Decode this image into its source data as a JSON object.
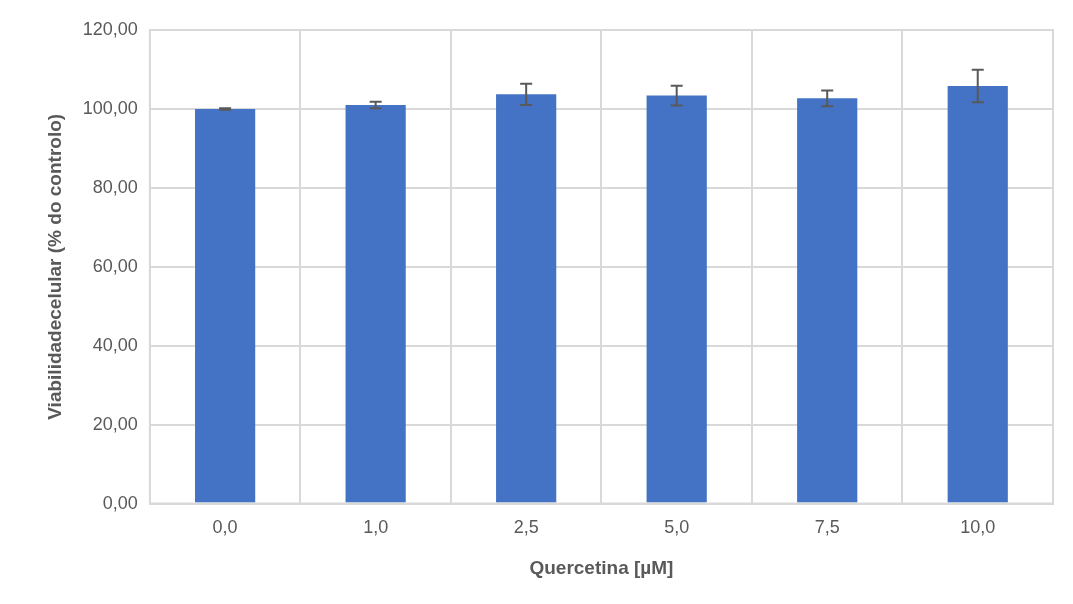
{
  "chart_data": {
    "type": "bar",
    "xlabel": "Quercetina [µM]",
    "ylabel": "Viabilidadecelular (% do controlo)",
    "categories": [
      "0,0",
      "1,0",
      "2,5",
      "5,0",
      "7,5",
      "10,0"
    ],
    "values": [
      100,
      101,
      103.7,
      103.4,
      102.7,
      105.8
    ],
    "errors": [
      0.2,
      0.8,
      2.7,
      2.5,
      2,
      4.1
    ],
    "color": "#4472c4",
    "ylim": [
      0,
      120
    ],
    "yticks": [
      {
        "value": 0,
        "label": "0,00"
      },
      {
        "value": 20,
        "label": "20,00"
      },
      {
        "value": 40,
        "label": "40,00"
      },
      {
        "value": 60,
        "label": "60,00"
      },
      {
        "value": 80,
        "label": "80,00"
      },
      {
        "value": 100,
        "label": "100,00"
      },
      {
        "value": 120,
        "label": "120,00"
      }
    ],
    "grid": true
  }
}
